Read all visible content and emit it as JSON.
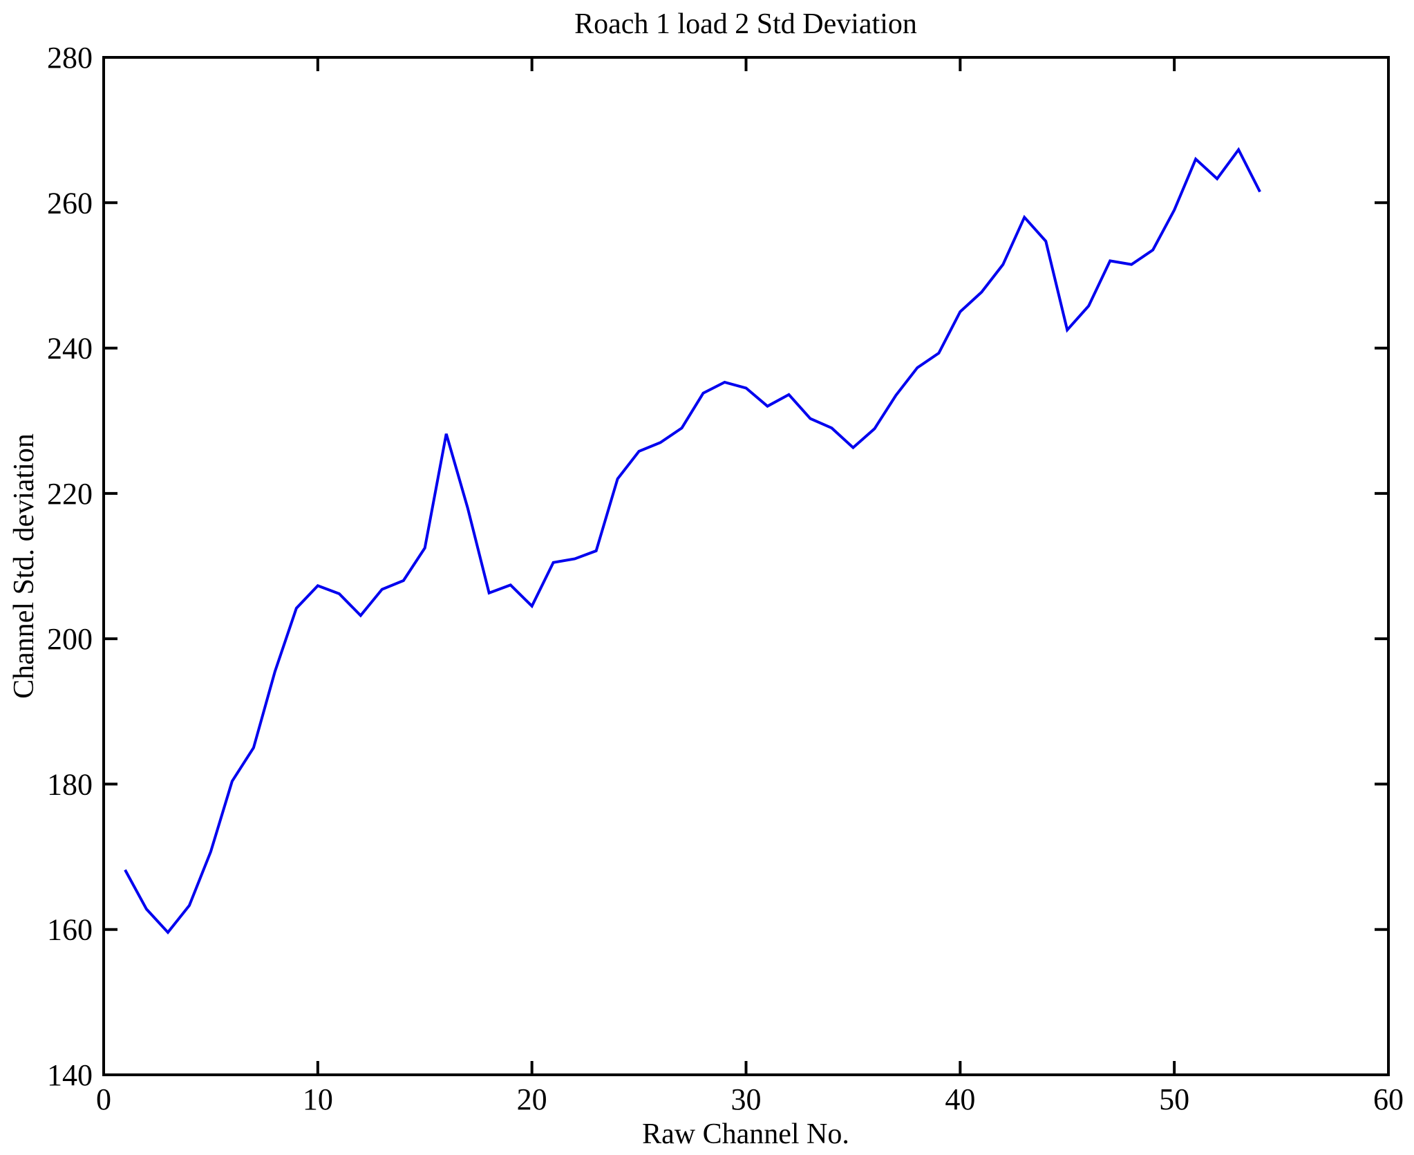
{
  "title": "Roach 1 load 2 Std Deviation",
  "chart_data": {
    "type": "line",
    "title": "Roach 1 load 2 Std Deviation",
    "xlabel": "Raw Channel No.",
    "ylabel": "Channel Std. deviation",
    "xlim": [
      0,
      60
    ],
    "ylim": [
      140,
      280
    ],
    "xticks": [
      0,
      10,
      20,
      30,
      40,
      50,
      60
    ],
    "yticks": [
      140,
      160,
      180,
      200,
      220,
      240,
      260,
      280
    ],
    "grid": false,
    "legend": null,
    "line_color": "#0000ee",
    "axis_color": "#000000",
    "background_color": "#ffffff",
    "series_name": "Channel Std. deviation",
    "x": [
      1,
      2,
      3,
      4,
      5,
      6,
      7,
      8,
      9,
      10,
      11,
      12,
      13,
      14,
      15,
      16,
      17,
      18,
      19,
      20,
      21,
      22,
      23,
      24,
      25,
      26,
      27,
      28,
      29,
      30,
      31,
      32,
      33,
      34,
      35,
      36,
      37,
      38,
      39,
      40,
      41,
      42,
      43,
      44,
      45,
      46,
      47,
      48,
      49,
      50,
      51,
      52,
      53,
      54
    ],
    "y": [
      168.2,
      162.8,
      159.6,
      163.3,
      170.7,
      180.4,
      185.0,
      195.5,
      204.2,
      207.3,
      206.2,
      203.2,
      206.8,
      208.0,
      212.5,
      228.2,
      218.0,
      206.3,
      207.4,
      204.5,
      210.5,
      211.0,
      212.1,
      222.0,
      225.8,
      227.0,
      229.0,
      233.8,
      235.3,
      234.5,
      232.0,
      233.6,
      230.3,
      229.0,
      226.3,
      228.9,
      233.5,
      237.3,
      239.3,
      245.0,
      247.7,
      251.5,
      258.0,
      254.7,
      242.5,
      245.8,
      252.0,
      251.5,
      253.5,
      259.0,
      266.0,
      263.3,
      267.3,
      261.5
    ]
  }
}
